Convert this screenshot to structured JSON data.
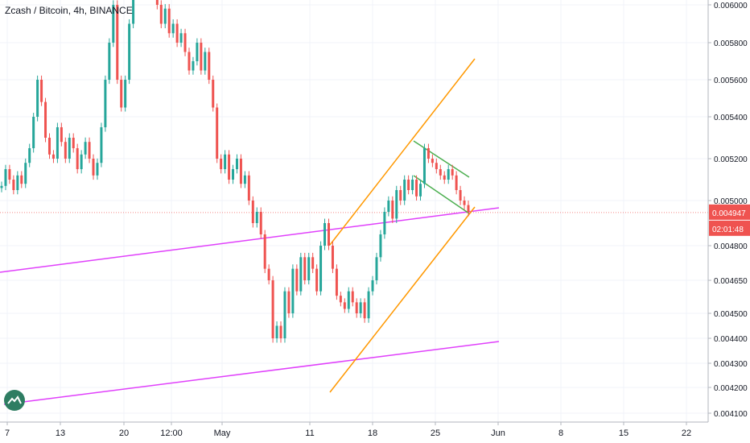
{
  "title": "Zcash / Bitcoin, 4h, BINANCE",
  "chart_data": {
    "type": "candlestick",
    "title": "Zcash / Bitcoin, 4h, BINANCE",
    "y_axis": {
      "ticks": [
        "0.004100",
        "0.004200",
        "0.004300",
        "0.004400",
        "0.004500",
        "0.004650",
        "0.004800",
        "0.005000",
        "0.005200",
        "0.005400",
        "0.005600",
        "0.005800",
        "0.006000"
      ],
      "range": [
        0.00408,
        0.00602
      ]
    },
    "x_axis": {
      "ticks": [
        "7",
        "13",
        "20",
        "12:00",
        "May",
        "11",
        "18",
        "25",
        "Jun",
        "8",
        "15",
        "22"
      ]
    },
    "last_price": "0.004947",
    "countdown": "02:01:48",
    "price_line": 0.004947,
    "colors": {
      "up": "#26a69a",
      "down": "#ef5350",
      "support_lines": "#e040fb",
      "channel": "#ff9800",
      "flag": "#4caf50",
      "price_tag": "#ef5350"
    },
    "candles_close": [
      0.00507,
      0.00515,
      0.0051,
      0.00505,
      0.00512,
      0.00508,
      0.00518,
      0.00525,
      0.0054,
      0.0056,
      0.00548,
      0.0053,
      0.00522,
      0.0052,
      0.00535,
      0.00528,
      0.0052,
      0.0053,
      0.00525,
      0.00515,
      0.00522,
      0.00528,
      0.0052,
      0.00512,
      0.00518,
      0.00535,
      0.0056,
      0.0058,
      0.006,
      0.0056,
      0.00545,
      0.0056,
      0.0059,
      0.0062,
      0.00625,
      0.00615,
      0.0062,
      0.0061,
      0.00605,
      0.006,
      0.0059,
      0.00598,
      0.00585,
      0.0059,
      0.0058,
      0.00585,
      0.00575,
      0.00565,
      0.0057,
      0.0058,
      0.00565,
      0.00575,
      0.0056,
      0.00545,
      0.0052,
      0.00515,
      0.00522,
      0.0051,
      0.00515,
      0.0052,
      0.00508,
      0.00512,
      0.005,
      0.0049,
      0.00495,
      0.00485,
      0.0047,
      0.00465,
      0.0044,
      0.00445,
      0.0044,
      0.0046,
      0.0045,
      0.0047,
      0.0046,
      0.00475,
      0.00465,
      0.00475,
      0.0047,
      0.0046,
      0.0048,
      0.0049,
      0.0048,
      0.0047,
      0.00458,
      0.00455,
      0.00452,
      0.0046,
      0.00455,
      0.0045,
      0.00455,
      0.00448,
      0.0046,
      0.00465,
      0.00475,
      0.00485,
      0.00495,
      0.005,
      0.00492,
      0.00505,
      0.005,
      0.0051,
      0.00505,
      0.0051,
      0.00502,
      0.00508,
      0.00525,
      0.0052,
      0.00518,
      0.00515,
      0.00512,
      0.0051,
      0.00515,
      0.00512,
      0.00505,
      0.005,
      0.00498,
      0.00495
    ]
  }
}
